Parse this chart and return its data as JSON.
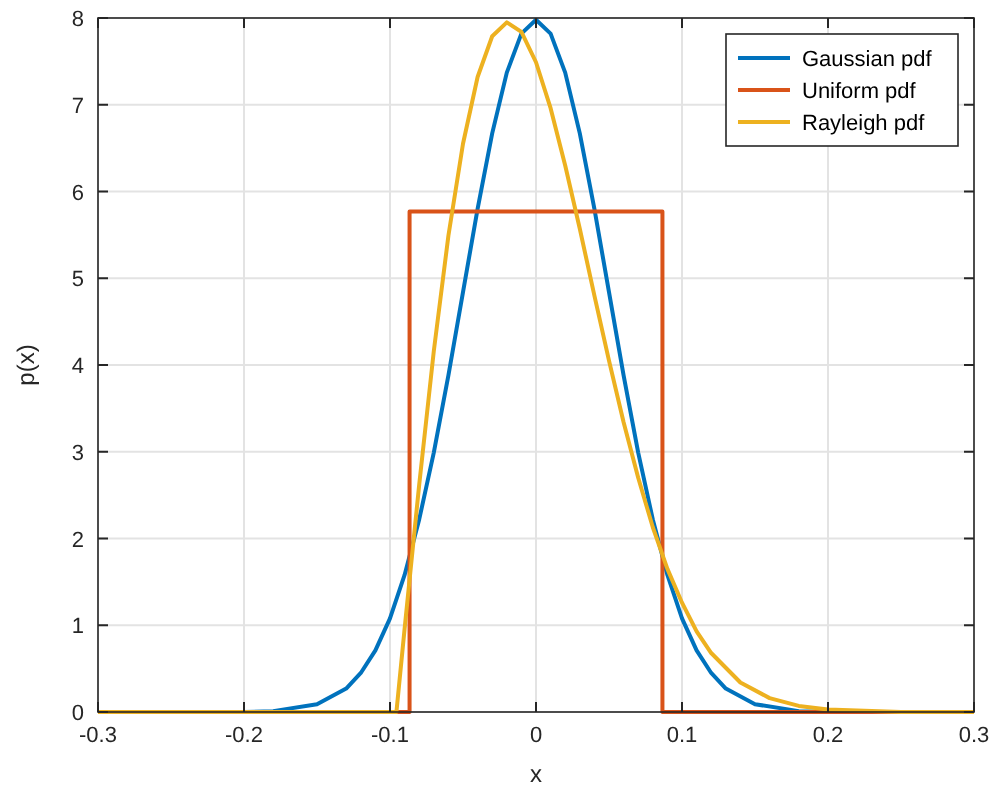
{
  "chart_data": {
    "type": "line",
    "xlabel": "x",
    "ylabel": "p(x)",
    "xlim": [
      -0.3,
      0.3
    ],
    "ylim": [
      0,
      8
    ],
    "xticks": [
      -0.3,
      -0.2,
      -0.1,
      0,
      0.1,
      0.2,
      0.3
    ],
    "yticks": [
      0,
      1,
      2,
      3,
      4,
      5,
      6,
      7,
      8
    ],
    "grid": true,
    "legend": "top right",
    "line_style": "solid",
    "marker": "none",
    "series": [
      {
        "name": "Gaussian pdf",
        "color": "#0072bd",
        "x": [
          -0.3,
          -0.2,
          -0.18,
          -0.15,
          -0.13,
          -0.12,
          -0.11,
          -0.1,
          -0.09,
          -0.08,
          -0.07,
          -0.06,
          -0.05,
          -0.04,
          -0.03,
          -0.02,
          -0.01,
          0,
          0.01,
          0.02,
          0.03,
          0.04,
          0.05,
          0.06,
          0.07,
          0.08,
          0.09,
          0.1,
          0.11,
          0.12,
          0.13,
          0.15,
          0.18,
          0.2,
          0.3
        ],
        "values": [
          0,
          0,
          0.01,
          0.09,
          0.27,
          0.45,
          0.71,
          1.08,
          1.58,
          2.22,
          2.99,
          3.88,
          4.84,
          5.8,
          6.67,
          7.37,
          7.82,
          7.98,
          7.82,
          7.37,
          6.67,
          5.8,
          4.84,
          3.88,
          2.99,
          2.22,
          1.58,
          1.08,
          0.71,
          0.45,
          0.27,
          0.09,
          0.01,
          0,
          0
        ]
      },
      {
        "name": "Uniform pdf",
        "color": "#d95319",
        "x": [
          -0.3,
          -0.0866,
          -0.0866,
          0.0866,
          0.0866,
          0.3
        ],
        "values": [
          0,
          0,
          5.77,
          5.77,
          0,
          0
        ]
      },
      {
        "name": "Rayleigh pdf",
        "color": "#edb120",
        "x": [
          -0.3,
          -0.0956,
          -0.09,
          -0.08,
          -0.07,
          -0.06,
          -0.05,
          -0.04,
          -0.03,
          -0.02,
          -0.01,
          0,
          0.01,
          0.02,
          0.03,
          0.04,
          0.05,
          0.06,
          0.07,
          0.08,
          0.09,
          0.1,
          0.11,
          0.12,
          0.14,
          0.16,
          0.18,
          0.2,
          0.25,
          0.3
        ],
        "values": [
          0,
          0,
          0.96,
          2.62,
          4.16,
          5.49,
          6.55,
          7.32,
          7.79,
          7.95,
          7.84,
          7.49,
          6.96,
          6.3,
          5.57,
          4.8,
          4.05,
          3.34,
          2.7,
          2.13,
          1.65,
          1.26,
          0.93,
          0.68,
          0.34,
          0.16,
          0.07,
          0.03,
          0,
          0
        ]
      }
    ]
  }
}
